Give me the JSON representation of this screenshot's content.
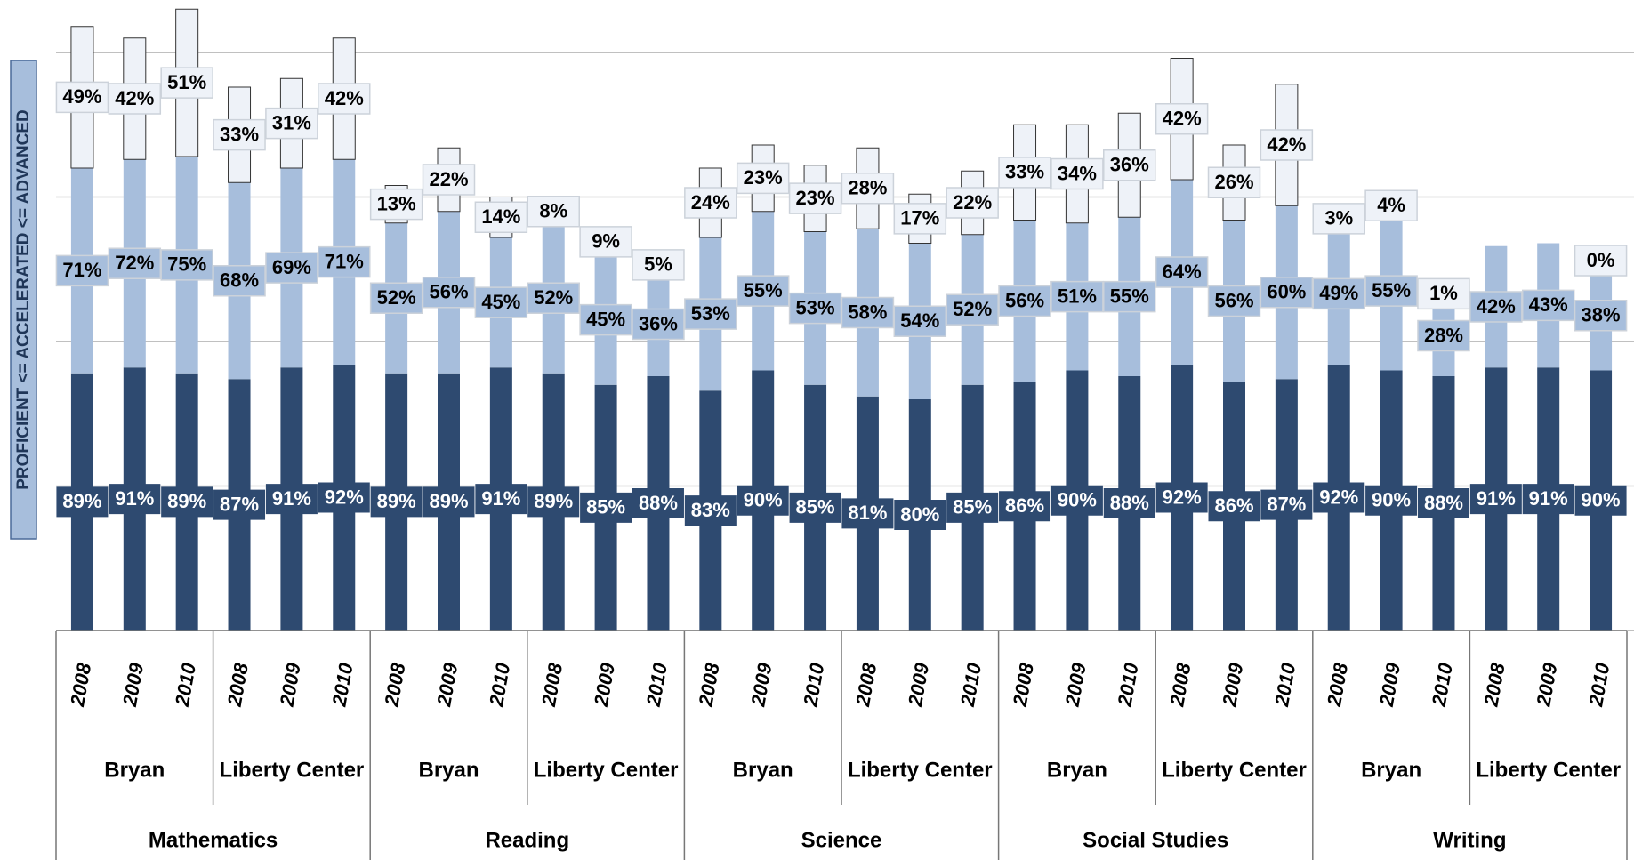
{
  "chart_data": {
    "type": "stacked_bar",
    "y_label": "PROFICIENT <= ACCELERATED <= ADVANCED",
    "categories": [
      "2008",
      "2009",
      "2010",
      "2008",
      "2009",
      "2010",
      "2008",
      "2009",
      "2010",
      "2008",
      "2009",
      "2010",
      "2008",
      "2009",
      "2010",
      "2008",
      "2009",
      "2010",
      "2008",
      "2009",
      "2010",
      "2008",
      "2009",
      "2010",
      "2008",
      "2009",
      "2010",
      "2008",
      "2009",
      "2010"
    ],
    "school_groups": [
      "Bryan",
      "Liberty Center",
      "Bryan",
      "Liberty Center",
      "Bryan",
      "Liberty Center",
      "Bryan",
      "Liberty Center",
      "Bryan",
      "Liberty Center"
    ],
    "subject_groups": [
      "Mathematics",
      "Reading",
      "Science",
      "Social Studies",
      "Writing"
    ],
    "series": [
      {
        "color": "#2e4a70",
        "label_color": "#ffffff",
        "values": [
          89,
          91,
          89,
          87,
          91,
          92,
          89,
          89,
          91,
          89,
          85,
          88,
          83,
          90,
          85,
          81,
          80,
          85,
          86,
          90,
          88,
          92,
          86,
          87,
          92,
          90,
          88,
          91,
          91,
          90
        ],
        "value_labels": [
          "89%",
          "91%",
          "89%",
          "87%",
          "91%",
          "92%",
          "89%",
          "89%",
          "91%",
          "89%",
          "85%",
          "88%",
          "83%",
          "90%",
          "85%",
          "81%",
          "80%",
          "85%",
          "86%",
          "90%",
          "88%",
          "92%",
          "86%",
          "87%",
          "92%",
          "90%",
          "88%",
          "91%",
          "91%",
          "90%"
        ]
      },
      {
        "color": "#a7bedc",
        "label_color": "#000000",
        "values": [
          71,
          72,
          75,
          68,
          69,
          71,
          52,
          56,
          45,
          52,
          45,
          36,
          53,
          55,
          53,
          58,
          54,
          52,
          56,
          51,
          55,
          64,
          56,
          60,
          49,
          55,
          28,
          42,
          43,
          38
        ],
        "value_labels": [
          "71%",
          "72%",
          "75%",
          "68%",
          "69%",
          "71%",
          "52%",
          "56%",
          "45%",
          "52%",
          "45%",
          "36%",
          "53%",
          "55%",
          "53%",
          "58%",
          "54%",
          "52%",
          "56%",
          "51%",
          "55%",
          "64%",
          "56%",
          "60%",
          "49%",
          "55%",
          "28%",
          "42%",
          "43%",
          "38%"
        ]
      },
      {
        "color": "#eef2f8",
        "label_color": "#000000",
        "values": [
          49,
          42,
          51,
          33,
          31,
          42,
          13,
          22,
          14,
          8,
          9,
          5,
          24,
          23,
          23,
          28,
          17,
          22,
          33,
          34,
          36,
          42,
          26,
          42,
          3,
          4,
          1,
          0,
          0,
          0
        ],
        "value_labels": [
          "49%",
          "42%",
          "51%",
          "33%",
          "31%",
          "42%",
          "13%",
          "22%",
          "14%",
          "8%",
          "9%",
          "5%",
          "24%",
          "23%",
          "23%",
          "28%",
          "17%",
          "22%",
          "33%",
          "34%",
          "36%",
          "42%",
          "26%",
          "42%",
          "3%",
          "4%",
          "1%",
          null,
          null,
          "0%"
        ]
      }
    ],
    "ylim": [
      0,
      200
    ],
    "yticks": [
      0,
      50,
      100,
      150,
      200
    ],
    "grid": true
  }
}
